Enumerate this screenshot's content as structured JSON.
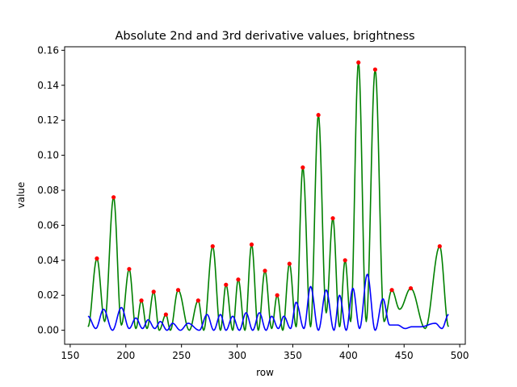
{
  "chart_data": {
    "type": "line",
    "title": "Absolute 2nd and 3rd derivative values, brightness",
    "xlabel": "row",
    "ylabel": "value",
    "xlim": [
      145,
      505
    ],
    "ylim": [
      -0.008,
      0.162
    ],
    "xticks": [
      150,
      200,
      250,
      300,
      350,
      400,
      450,
      500
    ],
    "yticks": [
      0.0,
      0.02,
      0.04,
      0.06,
      0.08,
      0.1,
      0.12,
      0.14,
      0.16
    ],
    "grid": false,
    "series": [
      {
        "color": "#008000",
        "start": [
          166,
          0.002
        ],
        "end": [
          490,
          0.002
        ],
        "peaks": [
          [
            174,
            0.041
          ],
          [
            189,
            0.076
          ],
          [
            203,
            0.035
          ],
          [
            214,
            0.017
          ],
          [
            225,
            0.022
          ],
          [
            236,
            0.009
          ],
          [
            247,
            0.023
          ],
          [
            265,
            0.017
          ],
          [
            278,
            0.048
          ],
          [
            290,
            0.026
          ],
          [
            301,
            0.029
          ],
          [
            313,
            0.049
          ],
          [
            325,
            0.034
          ],
          [
            336,
            0.02
          ],
          [
            347,
            0.038
          ],
          [
            359,
            0.093
          ],
          [
            373,
            0.123
          ],
          [
            386,
            0.064
          ],
          [
            397,
            0.04
          ],
          [
            409,
            0.153
          ],
          [
            424,
            0.149
          ],
          [
            439,
            0.023
          ],
          [
            456,
            0.024
          ],
          [
            482,
            0.048
          ]
        ],
        "valleys": [
          [
            181,
            0.005
          ],
          [
            196,
            0.003
          ],
          [
            209,
            0.001
          ],
          [
            219,
            0.001
          ],
          [
            230,
            0.0
          ],
          [
            240,
            0.0
          ],
          [
            257,
            0.0
          ],
          [
            270,
            0.0
          ],
          [
            285,
            0.0
          ],
          [
            296,
            0.0
          ],
          [
            307,
            0.0
          ],
          [
            319,
            0.0
          ],
          [
            331,
            0.001
          ],
          [
            341,
            0.0
          ],
          [
            353,
            0.002
          ],
          [
            366,
            0.002
          ],
          [
            380,
            0.01
          ],
          [
            392,
            0.002
          ],
          [
            402,
            0.005
          ],
          [
            416,
            0.005
          ],
          [
            432,
            0.005
          ],
          [
            446,
            0.012
          ],
          [
            469,
            0.001
          ]
        ]
      },
      {
        "color": "#0000ff",
        "start": [
          166,
          0.008
        ],
        "end": [
          490,
          0.009
        ],
        "peaks": [
          [
            180,
            0.012
          ],
          [
            196,
            0.013
          ],
          [
            209,
            0.007
          ],
          [
            220,
            0.006
          ],
          [
            231,
            0.005
          ],
          [
            242,
            0.004
          ],
          [
            256,
            0.004
          ],
          [
            273,
            0.009
          ],
          [
            285,
            0.009
          ],
          [
            296,
            0.008
          ],
          [
            308,
            0.01
          ],
          [
            320,
            0.01
          ],
          [
            331,
            0.008
          ],
          [
            342,
            0.008
          ],
          [
            353,
            0.016
          ],
          [
            366,
            0.025
          ],
          [
            380,
            0.023
          ],
          [
            392,
            0.02
          ],
          [
            404,
            0.024
          ],
          [
            417,
            0.032
          ],
          [
            431,
            0.018
          ],
          [
            444,
            0.003
          ],
          [
            457,
            0.002
          ],
          [
            478,
            0.004
          ],
          [
            490,
            0.009
          ]
        ],
        "valleys": [
          [
            173,
            0.001
          ],
          [
            188,
            0.0
          ],
          [
            203,
            0.001
          ],
          [
            215,
            0.001
          ],
          [
            226,
            0.001
          ],
          [
            237,
            0.0
          ],
          [
            249,
            0.0
          ],
          [
            266,
            0.0
          ],
          [
            279,
            0.0
          ],
          [
            290,
            0.0
          ],
          [
            302,
            0.0
          ],
          [
            314,
            0.0
          ],
          [
            326,
            0.0
          ],
          [
            337,
            0.001
          ],
          [
            348,
            0.001
          ],
          [
            360,
            0.001
          ],
          [
            373,
            0.0
          ],
          [
            387,
            0.0
          ],
          [
            398,
            0.0
          ],
          [
            410,
            0.001
          ],
          [
            424,
            0.0
          ],
          [
            437,
            0.003
          ],
          [
            451,
            0.001
          ],
          [
            465,
            0.002
          ],
          [
            484,
            0.001
          ]
        ]
      }
    ],
    "markers": {
      "color": "#ff0000",
      "points": [
        [
          174,
          0.041
        ],
        [
          189,
          0.076
        ],
        [
          203,
          0.035
        ],
        [
          214,
          0.017
        ],
        [
          225,
          0.022
        ],
        [
          236,
          0.009
        ],
        [
          247,
          0.023
        ],
        [
          265,
          0.017
        ],
        [
          278,
          0.048
        ],
        [
          290,
          0.026
        ],
        [
          301,
          0.029
        ],
        [
          313,
          0.049
        ],
        [
          325,
          0.034
        ],
        [
          336,
          0.02
        ],
        [
          347,
          0.038
        ],
        [
          359,
          0.093
        ],
        [
          373,
          0.123
        ],
        [
          386,
          0.064
        ],
        [
          397,
          0.04
        ],
        [
          409,
          0.153
        ],
        [
          424,
          0.149
        ],
        [
          439,
          0.023
        ],
        [
          456,
          0.024
        ],
        [
          482,
          0.048
        ]
      ]
    }
  }
}
